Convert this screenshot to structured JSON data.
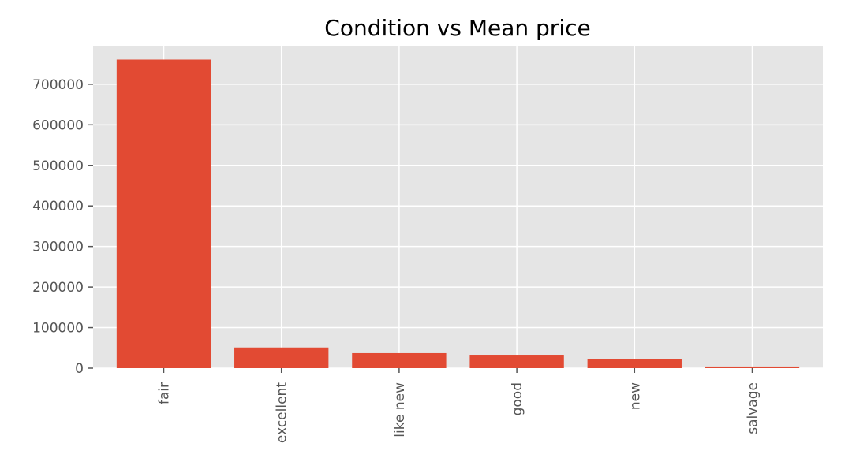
{
  "chart_data": {
    "type": "bar",
    "title": "Condition vs Mean price",
    "xlabel": "",
    "ylabel": "",
    "categories": [
      "fair",
      "excellent",
      "like new",
      "good",
      "new",
      "salvage"
    ],
    "values": [
      761000,
      51000,
      37000,
      33000,
      23000,
      4000
    ],
    "ylim": [
      0,
      795000
    ],
    "yticks": [
      0,
      100000,
      200000,
      300000,
      400000,
      500000,
      600000,
      700000
    ],
    "ytick_labels": [
      "0",
      "100000",
      "200000",
      "300000",
      "400000",
      "500000",
      "600000",
      "700000"
    ],
    "grid": true,
    "legend": "none",
    "colors": {
      "bar": "#E24A33",
      "plot_background": "#E5E5E5",
      "grid": "#FFFFFF",
      "tick_text": "#555555"
    }
  }
}
